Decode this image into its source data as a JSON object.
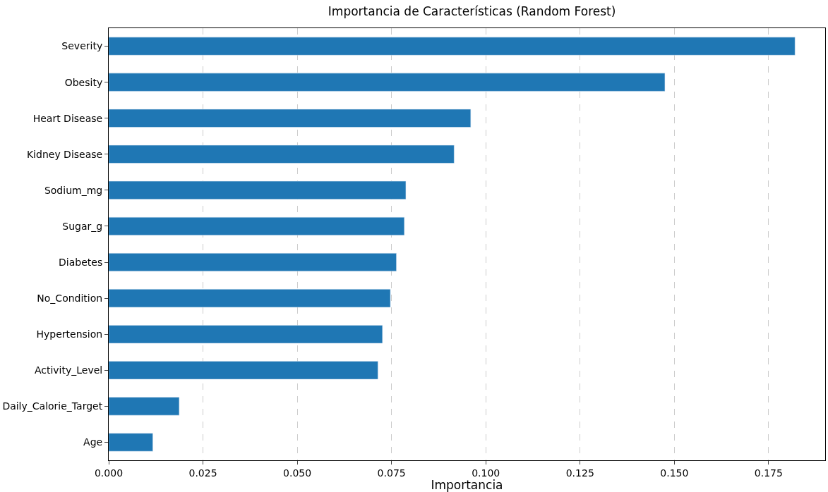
{
  "chart_data": {
    "type": "bar",
    "orientation": "horizontal",
    "title": "Importancia de Características (Random Forest)",
    "xlabel": "Importancia",
    "categories": [
      "Severity",
      "Obesity",
      "Heart Disease",
      "Kidney Disease",
      "Sodium_mg",
      "Sugar_g",
      "Diabetes",
      "No_Condition",
      "Hypertension",
      "Activity_Level",
      "Daily_Calorie_Target",
      "Age"
    ],
    "values": [
      0.182,
      0.1475,
      0.096,
      0.0916,
      0.0788,
      0.0784,
      0.0763,
      0.0747,
      0.0726,
      0.0714,
      0.0187,
      0.0117
    ],
    "color": "#1f77b4",
    "xlim": [
      0,
      0.19
    ],
    "xticks": [
      {
        "value": 0,
        "label": "0.000"
      },
      {
        "value": 0.025,
        "label": "0.025"
      },
      {
        "value": 0.05,
        "label": "0.050"
      },
      {
        "value": 0.075,
        "label": "0.075"
      },
      {
        "value": 0.1,
        "label": "0.100"
      },
      {
        "value": 0.125,
        "label": "0.125"
      },
      {
        "value": 0.15,
        "label": "0.150"
      },
      {
        "value": 0.175,
        "label": "0.175"
      }
    ],
    "grid": "x",
    "legend": false
  }
}
